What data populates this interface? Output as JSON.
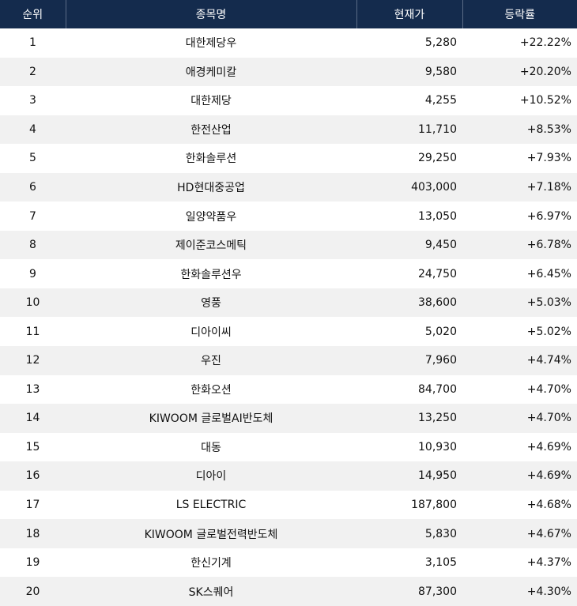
{
  "header": {
    "rank": "순위",
    "name": "종목명",
    "price": "현재가",
    "change": "등락률"
  },
  "rows": [
    {
      "rank": "1",
      "name": "대한제당우",
      "price": "5,280",
      "change": "+22.22%"
    },
    {
      "rank": "2",
      "name": "애경케미칼",
      "price": "9,580",
      "change": "+20.20%"
    },
    {
      "rank": "3",
      "name": "대한제당",
      "price": "4,255",
      "change": "+10.52%"
    },
    {
      "rank": "4",
      "name": "한전산업",
      "price": "11,710",
      "change": "+8.53%"
    },
    {
      "rank": "5",
      "name": "한화솔루션",
      "price": "29,250",
      "change": "+7.93%"
    },
    {
      "rank": "6",
      "name": "HD현대중공업",
      "price": "403,000",
      "change": "+7.18%"
    },
    {
      "rank": "7",
      "name": "일양약품우",
      "price": "13,050",
      "change": "+6.97%"
    },
    {
      "rank": "8",
      "name": "제이준코스메틱",
      "price": "9,450",
      "change": "+6.78%"
    },
    {
      "rank": "9",
      "name": "한화솔루션우",
      "price": "24,750",
      "change": "+6.45%"
    },
    {
      "rank": "10",
      "name": "영풍",
      "price": "38,600",
      "change": "+5.03%"
    },
    {
      "rank": "11",
      "name": "디아이씨",
      "price": "5,020",
      "change": "+5.02%"
    },
    {
      "rank": "12",
      "name": "우진",
      "price": "7,960",
      "change": "+4.74%"
    },
    {
      "rank": "13",
      "name": "한화오션",
      "price": "84,700",
      "change": "+4.70%"
    },
    {
      "rank": "14",
      "name": "KIWOOM 글로벌AI반도체",
      "price": "13,250",
      "change": "+4.70%"
    },
    {
      "rank": "15",
      "name": "대동",
      "price": "10,930",
      "change": "+4.69%"
    },
    {
      "rank": "16",
      "name": "디아이",
      "price": "14,950",
      "change": "+4.69%"
    },
    {
      "rank": "17",
      "name": "LS ELECTRIC",
      "price": "187,800",
      "change": "+4.68%"
    },
    {
      "rank": "18",
      "name": "KIWOOM 글로벌전력반도체",
      "price": "5,830",
      "change": "+4.67%"
    },
    {
      "rank": "19",
      "name": "한신기계",
      "price": "3,105",
      "change": "+4.37%"
    },
    {
      "rank": "20",
      "name": "SK스퀘어",
      "price": "87,300",
      "change": "+4.30%"
    }
  ]
}
